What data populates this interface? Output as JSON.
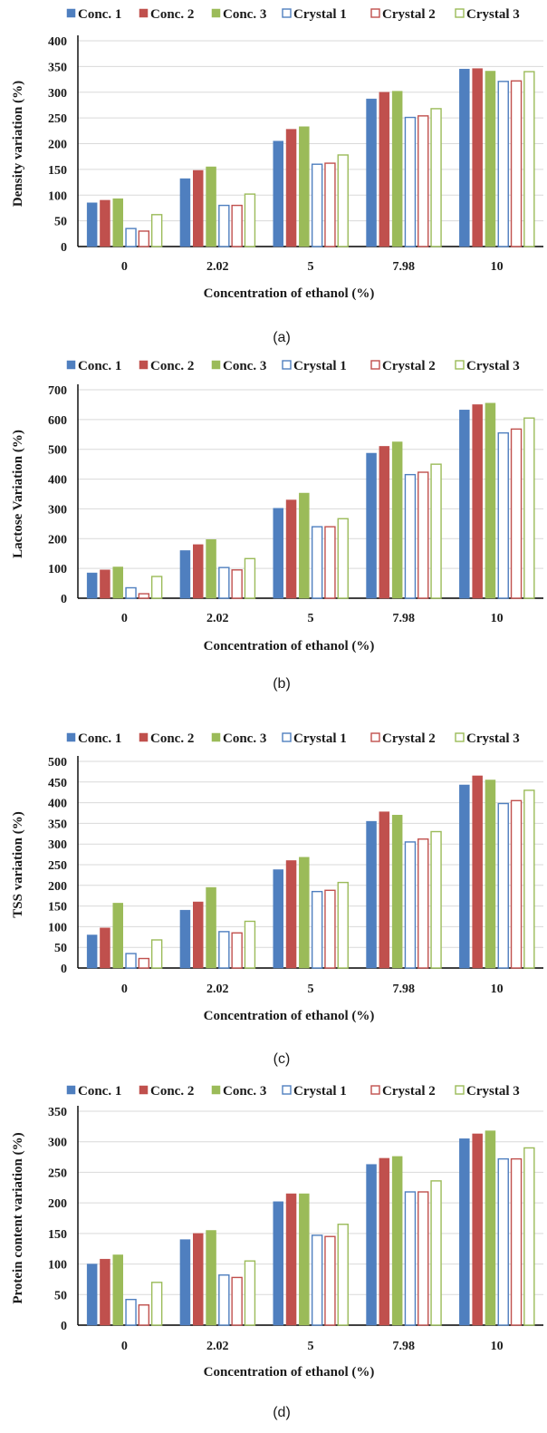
{
  "series_styles": [
    {
      "fill": "#4f7fbf",
      "stroke": "#4f7fbf",
      "hollow": false
    },
    {
      "fill": "#c0504d",
      "stroke": "#c0504d",
      "hollow": false
    },
    {
      "fill": "#9bbb59",
      "stroke": "#9bbb59",
      "hollow": false
    },
    {
      "fill": "#ffffff",
      "stroke": "#4f7fbf",
      "hollow": true
    },
    {
      "fill": "#ffffff",
      "stroke": "#c0504d",
      "hollow": true
    },
    {
      "fill": "#ffffff",
      "stroke": "#9bbb59",
      "hollow": true
    }
  ],
  "chart_data": [
    {
      "type": "bar",
      "caption": "(a)",
      "xlabel": "Concentration of ethanol (%)",
      "ylabel": "Density variation (%)",
      "categories": [
        "0",
        "2.02",
        "5",
        "7.98",
        "10"
      ],
      "ylim": [
        0,
        400
      ],
      "yticks": [
        0,
        50,
        100,
        150,
        200,
        250,
        300,
        350,
        400
      ],
      "grid": true,
      "legend": "top",
      "series": [
        {
          "name": "Conc. 1",
          "values": [
            85,
            132,
            205,
            287,
            345
          ]
        },
        {
          "name": "Conc. 2",
          "values": [
            90,
            148,
            228,
            300,
            346
          ]
        },
        {
          "name": "Conc. 3",
          "values": [
            93,
            155,
            233,
            302,
            341
          ]
        },
        {
          "name": "Crystal 1",
          "values": [
            35,
            80,
            160,
            251,
            321
          ]
        },
        {
          "name": "Crystal 2",
          "values": [
            30,
            80,
            162,
            254,
            322
          ]
        },
        {
          "name": "Crystal 3",
          "values": [
            62,
            102,
            178,
            268,
            340
          ]
        }
      ]
    },
    {
      "type": "bar",
      "caption": "(b)",
      "xlabel": "Concentration of ethanol (%)",
      "ylabel": "Lactose Variation (%)",
      "categories": [
        "0",
        "2.02",
        "5",
        "7.98",
        "10"
      ],
      "ylim": [
        0,
        700
      ],
      "yticks": [
        0,
        100,
        200,
        300,
        400,
        500,
        600,
        700
      ],
      "grid": true,
      "legend": "top",
      "series": [
        {
          "name": "Conc. 1",
          "values": [
            85,
            160,
            302,
            487,
            632
          ]
        },
        {
          "name": "Conc. 2",
          "values": [
            95,
            180,
            330,
            510,
            650
          ]
        },
        {
          "name": "Conc. 3",
          "values": [
            105,
            197,
            353,
            525,
            655
          ]
        },
        {
          "name": "Crystal 1",
          "values": [
            35,
            103,
            240,
            415,
            555
          ]
        },
        {
          "name": "Crystal 2",
          "values": [
            15,
            95,
            240,
            423,
            568
          ]
        },
        {
          "name": "Crystal 3",
          "values": [
            73,
            133,
            267,
            450,
            605
          ]
        }
      ]
    },
    {
      "type": "bar",
      "caption": "(c)",
      "xlabel": "Concentration of ethanol (%)",
      "ylabel": "TSS variation (%)",
      "categories": [
        "0",
        "2.02",
        "5",
        "7.98",
        "10"
      ],
      "ylim": [
        0,
        500
      ],
      "yticks": [
        0,
        50,
        100,
        150,
        200,
        250,
        300,
        350,
        400,
        450,
        500
      ],
      "grid": true,
      "legend": "top",
      "series": [
        {
          "name": "Conc. 1",
          "values": [
            80,
            140,
            238,
            355,
            443
          ]
        },
        {
          "name": "Conc. 2",
          "values": [
            97,
            160,
            260,
            378,
            465
          ]
        },
        {
          "name": "Conc. 3",
          "values": [
            157,
            195,
            268,
            370,
            455
          ]
        },
        {
          "name": "Crystal 1",
          "values": [
            35,
            88,
            185,
            305,
            398
          ]
        },
        {
          "name": "Crystal 2",
          "values": [
            23,
            85,
            188,
            312,
            405
          ]
        },
        {
          "name": "Crystal 3",
          "values": [
            68,
            113,
            207,
            330,
            430
          ]
        }
      ]
    },
    {
      "type": "bar",
      "caption": "(d)",
      "xlabel": "Concentration of ethanol (%)",
      "ylabel": "Protein content variation  (%)",
      "categories": [
        "0",
        "2.02",
        "5",
        "7.98",
        "10"
      ],
      "ylim": [
        0,
        350
      ],
      "yticks": [
        0,
        50,
        100,
        150,
        200,
        250,
        300,
        350
      ],
      "grid": true,
      "legend": "top",
      "series": [
        {
          "name": "Conc. 1",
          "values": [
            100,
            140,
            202,
            263,
            305
          ]
        },
        {
          "name": "Conc. 2",
          "values": [
            108,
            150,
            215,
            273,
            313
          ]
        },
        {
          "name": "Conc. 3",
          "values": [
            115,
            155,
            215,
            276,
            318
          ]
        },
        {
          "name": "Crystal 1",
          "values": [
            42,
            82,
            147,
            218,
            272
          ]
        },
        {
          "name": "Crystal 2",
          "values": [
            33,
            78,
            145,
            218,
            272
          ]
        },
        {
          "name": "Crystal 3",
          "values": [
            70,
            105,
            165,
            236,
            290
          ]
        }
      ]
    }
  ]
}
